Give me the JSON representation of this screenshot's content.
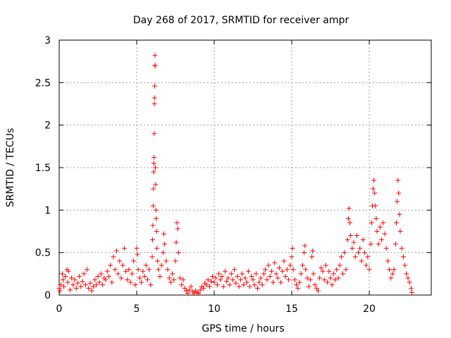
{
  "chart_data": {
    "type": "scatter",
    "title": "Day 268 of 2017, SRMTID for receiver ampr",
    "xlabel": "GPS time / hours",
    "ylabel": "SRMTID / TECUs",
    "xlim": [
      0,
      24
    ],
    "ylim": [
      0,
      3
    ],
    "xticks": [
      0,
      5,
      10,
      15,
      20
    ],
    "xtick_labels": [
      "0",
      "5",
      "10",
      "15",
      "20"
    ],
    "yticks": [
      0,
      0.5,
      1,
      1.5,
      2,
      2.5,
      3
    ],
    "ytick_labels": [
      "0",
      "0.5",
      "1",
      "1.5",
      "2",
      "2.5",
      "3"
    ],
    "grid": true,
    "marker": "+",
    "series": [
      {
        "name": "SRMTID",
        "color": "#ff0000",
        "points": [
          [
            0.0,
            0.08
          ],
          [
            0.05,
            0.05
          ],
          [
            0.1,
            0.12
          ],
          [
            0.2,
            0.25
          ],
          [
            0.25,
            0.18
          ],
          [
            0.3,
            0.1
          ],
          [
            0.4,
            0.22
          ],
          [
            0.5,
            0.3
          ],
          [
            0.55,
            0.15
          ],
          [
            0.6,
            0.28
          ],
          [
            0.7,
            0.06
          ],
          [
            0.8,
            0.2
          ],
          [
            0.9,
            0.12
          ],
          [
            1.0,
            0.18
          ],
          [
            1.1,
            0.08
          ],
          [
            1.2,
            0.14
          ],
          [
            1.3,
            0.22
          ],
          [
            1.4,
            0.1
          ],
          [
            1.5,
            0.16
          ],
          [
            1.6,
            0.25
          ],
          [
            1.7,
            0.12
          ],
          [
            1.8,
            0.3
          ],
          [
            1.9,
            0.08
          ],
          [
            2.0,
            0.14
          ],
          [
            2.1,
            0.05
          ],
          [
            2.2,
            0.1
          ],
          [
            2.3,
            0.18
          ],
          [
            2.4,
            0.12
          ],
          [
            2.5,
            0.22
          ],
          [
            2.6,
            0.15
          ],
          [
            2.7,
            0.25
          ],
          [
            2.8,
            0.12
          ],
          [
            2.9,
            0.2
          ],
          [
            3.0,
            0.18
          ],
          [
            3.1,
            0.28
          ],
          [
            3.2,
            0.22
          ],
          [
            3.3,
            0.35
          ],
          [
            3.4,
            0.15
          ],
          [
            3.5,
            0.45
          ],
          [
            3.6,
            0.3
          ],
          [
            3.7,
            0.52
          ],
          [
            3.8,
            0.25
          ],
          [
            3.9,
            0.4
          ],
          [
            4.0,
            0.2
          ],
          [
            4.1,
            0.35
          ],
          [
            4.2,
            0.55
          ],
          [
            4.3,
            0.28
          ],
          [
            4.4,
            0.18
          ],
          [
            4.5,
            0.3
          ],
          [
            4.6,
            0.15
          ],
          [
            4.7,
            0.25
          ],
          [
            4.8,
            0.4
          ],
          [
            4.9,
            0.12
          ],
          [
            5.0,
            0.55
          ],
          [
            5.05,
            0.48
          ],
          [
            5.1,
            0.3
          ],
          [
            5.2,
            0.2
          ],
          [
            5.3,
            0.15
          ],
          [
            5.4,
            0.28
          ],
          [
            5.5,
            0.22
          ],
          [
            5.6,
            0.35
          ],
          [
            5.7,
            0.18
          ],
          [
            5.8,
            0.3
          ],
          [
            5.9,
            0.12
          ],
          [
            6.0,
            0.45
          ],
          [
            6.02,
            0.65
          ],
          [
            6.04,
            0.82
          ],
          [
            6.06,
            1.05
          ],
          [
            6.08,
            1.25
          ],
          [
            6.1,
            1.45
          ],
          [
            6.11,
            1.55
          ],
          [
            6.12,
            1.62
          ],
          [
            6.13,
            1.9
          ],
          [
            6.14,
            2.25
          ],
          [
            6.15,
            2.32
          ],
          [
            6.16,
            2.46
          ],
          [
            6.17,
            2.7
          ],
          [
            6.18,
            2.82
          ],
          [
            6.19,
            2.7
          ],
          [
            6.2,
            1.5
          ],
          [
            6.22,
            1.3
          ],
          [
            6.24,
            1.0
          ],
          [
            6.26,
            0.9
          ],
          [
            6.28,
            0.75
          ],
          [
            6.3,
            0.55
          ],
          [
            6.35,
            0.4
          ],
          [
            6.4,
            0.3
          ],
          [
            6.5,
            0.22
          ],
          [
            6.6,
            0.35
          ],
          [
            6.7,
            0.5
          ],
          [
            6.75,
            0.72
          ],
          [
            6.8,
            0.6
          ],
          [
            6.9,
            0.4
          ],
          [
            7.0,
            0.3
          ],
          [
            7.1,
            0.2
          ],
          [
            7.2,
            0.15
          ],
          [
            7.3,
            0.25
          ],
          [
            7.4,
            0.18
          ],
          [
            7.5,
            0.4
          ],
          [
            7.55,
            0.62
          ],
          [
            7.6,
            0.85
          ],
          [
            7.65,
            0.78
          ],
          [
            7.7,
            0.5
          ],
          [
            7.8,
            0.2
          ],
          [
            7.9,
            0.12
          ],
          [
            8.0,
            0.18
          ],
          [
            8.1,
            0.08
          ],
          [
            8.2,
            0.05
          ],
          [
            8.3,
            0.02
          ],
          [
            8.4,
            0.06
          ],
          [
            8.5,
            0.1
          ],
          [
            8.6,
            0.04
          ],
          [
            8.7,
            0.02
          ],
          [
            8.8,
            0.05
          ],
          [
            8.9,
            0.03
          ],
          [
            9.0,
            0.02
          ],
          [
            9.1,
            0.06
          ],
          [
            9.2,
            0.1
          ],
          [
            9.3,
            0.08
          ],
          [
            9.4,
            0.14
          ],
          [
            9.5,
            0.12
          ],
          [
            9.6,
            0.18
          ],
          [
            9.7,
            0.1
          ],
          [
            9.8,
            0.16
          ],
          [
            9.9,
            0.22
          ],
          [
            10.0,
            0.15
          ],
          [
            10.1,
            0.2
          ],
          [
            10.2,
            0.12
          ],
          [
            10.3,
            0.25
          ],
          [
            10.4,
            0.18
          ],
          [
            10.5,
            0.22
          ],
          [
            10.6,
            0.1
          ],
          [
            10.7,
            0.28
          ],
          [
            10.8,
            0.16
          ],
          [
            10.9,
            0.2
          ],
          [
            11.0,
            0.12
          ],
          [
            11.1,
            0.25
          ],
          [
            11.2,
            0.18
          ],
          [
            11.3,
            0.3
          ],
          [
            11.4,
            0.14
          ],
          [
            11.5,
            0.22
          ],
          [
            11.6,
            0.1
          ],
          [
            11.7,
            0.18
          ],
          [
            11.8,
            0.25
          ],
          [
            11.9,
            0.12
          ],
          [
            12.0,
            0.2
          ],
          [
            12.1,
            0.15
          ],
          [
            12.2,
            0.28
          ],
          [
            12.3,
            0.1
          ],
          [
            12.4,
            0.22
          ],
          [
            12.5,
            0.18
          ],
          [
            12.6,
            0.12
          ],
          [
            12.7,
            0.25
          ],
          [
            12.8,
            0.08
          ],
          [
            12.9,
            0.15
          ],
          [
            13.0,
            0.2
          ],
          [
            13.1,
            0.12
          ],
          [
            13.2,
            0.25
          ],
          [
            13.3,
            0.3
          ],
          [
            13.4,
            0.18
          ],
          [
            13.5,
            0.35
          ],
          [
            13.6,
            0.22
          ],
          [
            13.7,
            0.28
          ],
          [
            13.8,
            0.15
          ],
          [
            13.9,
            0.38
          ],
          [
            14.0,
            0.25
          ],
          [
            14.1,
            0.2
          ],
          [
            14.2,
            0.32
          ],
          [
            14.3,
            0.15
          ],
          [
            14.4,
            0.28
          ],
          [
            14.5,
            0.4
          ],
          [
            14.6,
            0.22
          ],
          [
            14.7,
            0.3
          ],
          [
            14.8,
            0.18
          ],
          [
            14.9,
            0.35
          ],
          [
            15.0,
            0.45
          ],
          [
            15.05,
            0.55
          ],
          [
            15.1,
            0.3
          ],
          [
            15.2,
            0.18
          ],
          [
            15.3,
            0.12
          ],
          [
            15.4,
            0.08
          ],
          [
            15.5,
            0.15
          ],
          [
            15.6,
            0.25
          ],
          [
            15.7,
            0.35
          ],
          [
            15.8,
            0.5
          ],
          [
            15.85,
            0.58
          ],
          [
            15.9,
            0.3
          ],
          [
            16.0,
            0.2
          ],
          [
            16.1,
            0.1
          ],
          [
            16.2,
            0.18
          ],
          [
            16.3,
            0.45
          ],
          [
            16.35,
            0.52
          ],
          [
            16.4,
            0.25
          ],
          [
            16.5,
            0.12
          ],
          [
            16.6,
            0.08
          ],
          [
            16.7,
            0.05
          ],
          [
            16.8,
            0.2
          ],
          [
            16.9,
            0.32
          ],
          [
            17.0,
            0.28
          ],
          [
            17.1,
            0.18
          ],
          [
            17.2,
            0.35
          ],
          [
            17.3,
            0.15
          ],
          [
            17.4,
            0.28
          ],
          [
            17.5,
            0.2
          ],
          [
            17.6,
            0.12
          ],
          [
            17.7,
            0.25
          ],
          [
            17.8,
            0.18
          ],
          [
            17.9,
            0.3
          ],
          [
            18.0,
            0.2
          ],
          [
            18.1,
            0.35
          ],
          [
            18.2,
            0.45
          ],
          [
            18.3,
            0.25
          ],
          [
            18.4,
            0.5
          ],
          [
            18.5,
            0.3
          ],
          [
            18.6,
            0.65
          ],
          [
            18.65,
            0.9
          ],
          [
            18.7,
            1.02
          ],
          [
            18.75,
            0.85
          ],
          [
            18.8,
            0.7
          ],
          [
            18.9,
            0.55
          ],
          [
            19.0,
            0.62
          ],
          [
            19.1,
            0.45
          ],
          [
            19.2,
            0.7
          ],
          [
            19.3,
            0.5
          ],
          [
            19.4,
            0.55
          ],
          [
            19.5,
            0.4
          ],
          [
            19.6,
            0.65
          ],
          [
            19.7,
            0.5
          ],
          [
            19.8,
            0.35
          ],
          [
            19.9,
            0.45
          ],
          [
            20.0,
            0.3
          ],
          [
            20.1,
            0.6
          ],
          [
            20.15,
            0.85
          ],
          [
            20.2,
            1.05
          ],
          [
            20.25,
            1.25
          ],
          [
            20.3,
            1.35
          ],
          [
            20.35,
            1.2
          ],
          [
            20.4,
            1.05
          ],
          [
            20.45,
            0.9
          ],
          [
            20.5,
            0.75
          ],
          [
            20.6,
            0.6
          ],
          [
            20.7,
            0.8
          ],
          [
            20.8,
            0.65
          ],
          [
            20.9,
            0.85
          ],
          [
            21.0,
            0.72
          ],
          [
            21.1,
            0.55
          ],
          [
            21.2,
            0.4
          ],
          [
            21.3,
            0.3
          ],
          [
            21.4,
            0.2
          ],
          [
            21.5,
            0.25
          ],
          [
            21.6,
            0.3
          ],
          [
            21.7,
            0.6
          ],
          [
            21.75,
            0.85
          ],
          [
            21.8,
            1.1
          ],
          [
            21.85,
            1.35
          ],
          [
            21.9,
            1.2
          ],
          [
            21.95,
            0.95
          ],
          [
            22.0,
            0.75
          ],
          [
            22.1,
            0.55
          ],
          [
            22.2,
            0.45
          ],
          [
            22.3,
            0.35
          ],
          [
            22.4,
            0.25
          ],
          [
            22.5,
            0.2
          ],
          [
            22.6,
            0.15
          ],
          [
            22.7,
            0.08
          ],
          [
            22.75,
            0.03
          ]
        ]
      }
    ]
  }
}
